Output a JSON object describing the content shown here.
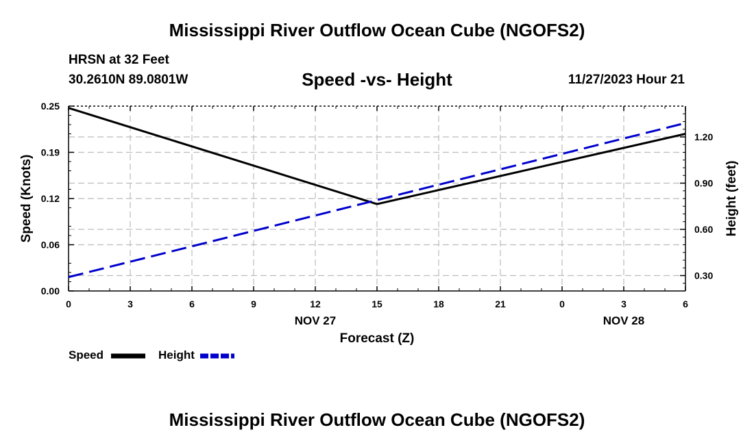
{
  "header": {
    "title": "Mississippi River Outflow Ocean Cube (NGOFS2)",
    "station": "HRSN at 32 Feet",
    "latlon": "30.2610N  89.0801W",
    "subtitle": "Speed -vs- Height",
    "datetime": "11/27/2023 Hour 21"
  },
  "footer": {
    "title": "Mississippi River Outflow Ocean Cube (NGOFS2)"
  },
  "legend": {
    "speed_label": "Speed",
    "height_label": "Height"
  },
  "chart_data": {
    "type": "line",
    "title": "Speed -vs- Height",
    "xlabel": "Forecast (Z)",
    "ylabel": "Speed (Knots)",
    "y2label": "Height (feet)",
    "x_ticks": [
      "0",
      "3",
      "6",
      "9",
      "12",
      "15",
      "18",
      "21",
      "0",
      "3",
      "6"
    ],
    "x_date_labels": [
      {
        "hours": 12,
        "text": "NOV 27"
      },
      {
        "hours": 27,
        "text": "NOV 28"
      }
    ],
    "xlim": [
      0,
      30
    ],
    "ylim": [
      0,
      0.25
    ],
    "y_ticks": [
      "0.00",
      "0.06",
      "0.12",
      "0.19",
      "0.25"
    ],
    "y_tick_values": [
      0,
      0.0625,
      0.125,
      0.1875,
      0.25
    ],
    "y2lim": [
      0.2,
      1.4
    ],
    "y2_ticks": [
      "0.30",
      "0.60",
      "0.90",
      "1.20"
    ],
    "y2_tick_values": [
      0.3,
      0.6,
      0.9,
      1.2
    ],
    "grid": true,
    "series": [
      {
        "name": "Speed",
        "axis": "left",
        "color": "#000000",
        "dash": "solid",
        "x": [
          0,
          15,
          30
        ],
        "values": [
          0.2475,
          0.1175,
          0.2125
        ]
      },
      {
        "name": "Height",
        "axis": "right",
        "color": "#0000cc",
        "dash": "dashed",
        "x": [
          0,
          30
        ],
        "values": [
          0.29,
          1.29
        ]
      }
    ]
  }
}
